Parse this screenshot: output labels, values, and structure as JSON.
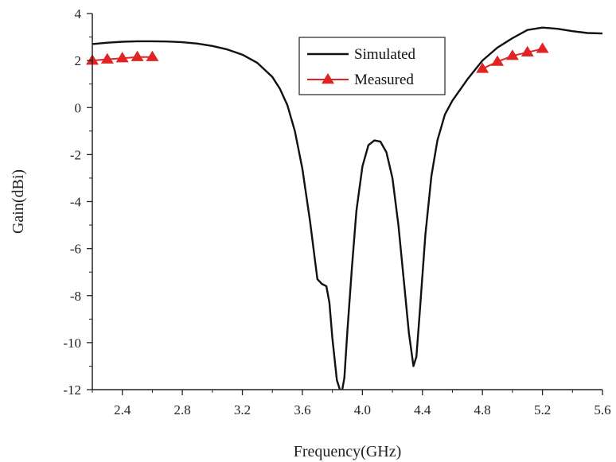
{
  "chart_data": {
    "type": "line",
    "title": "",
    "xlabel": "Frequency(GHz)",
    "ylabel": "Gain(dBi)",
    "xlim": [
      2.2,
      5.6
    ],
    "ylim": [
      -12,
      4
    ],
    "xticks": [
      "2.4",
      "2.8",
      "3.2",
      "3.6",
      "4.0",
      "4.4",
      "4.8",
      "5.2",
      "5.6"
    ],
    "yticks": [
      "4",
      "2",
      "0",
      "-2",
      "-4",
      "-6",
      "-8",
      "-10",
      "-12"
    ],
    "legend_position": "top-center",
    "series": [
      {
        "name": "Simulated",
        "color": "#111111",
        "marker": "none",
        "x": [
          2.2,
          2.3,
          2.4,
          2.5,
          2.6,
          2.7,
          2.8,
          2.9,
          3.0,
          3.1,
          3.2,
          3.3,
          3.4,
          3.45,
          3.5,
          3.55,
          3.6,
          3.65,
          3.7,
          3.73,
          3.76,
          3.78,
          3.8,
          3.83,
          3.86,
          3.88,
          3.9,
          3.93,
          3.96,
          4.0,
          4.04,
          4.08,
          4.12,
          4.16,
          4.2,
          4.24,
          4.28,
          4.31,
          4.34,
          4.36,
          4.38,
          4.42,
          4.46,
          4.5,
          4.55,
          4.6,
          4.7,
          4.8,
          4.9,
          5.0,
          5.1,
          5.2,
          5.3,
          5.4,
          5.5,
          5.6
        ],
        "values": [
          2.7,
          2.76,
          2.8,
          2.82,
          2.82,
          2.81,
          2.78,
          2.72,
          2.62,
          2.47,
          2.25,
          1.9,
          1.3,
          0.8,
          0.1,
          -1.0,
          -2.6,
          -4.8,
          -7.3,
          -7.5,
          -7.6,
          -8.3,
          -9.8,
          -11.6,
          -12.2,
          -11.5,
          -9.5,
          -6.8,
          -4.4,
          -2.5,
          -1.6,
          -1.4,
          -1.45,
          -1.9,
          -3.0,
          -5.0,
          -7.6,
          -9.6,
          -11.0,
          -10.6,
          -8.9,
          -5.4,
          -2.9,
          -1.4,
          -0.3,
          0.3,
          1.2,
          2.0,
          2.55,
          2.95,
          3.3,
          3.4,
          3.35,
          3.25,
          3.17,
          3.15
        ]
      },
      {
        "name": "Measured",
        "color": "#e02424",
        "marker": "triangle",
        "segments": [
          {
            "x": [
              2.2,
              2.3,
              2.4,
              2.5,
              2.6
            ],
            "values": [
              2.0,
              2.05,
              2.1,
              2.15,
              2.15
            ]
          },
          {
            "x": [
              4.8,
              4.9,
              5.0,
              5.1,
              5.2
            ],
            "values": [
              1.65,
              1.95,
              2.2,
              2.35,
              2.5
            ]
          }
        ]
      }
    ]
  }
}
